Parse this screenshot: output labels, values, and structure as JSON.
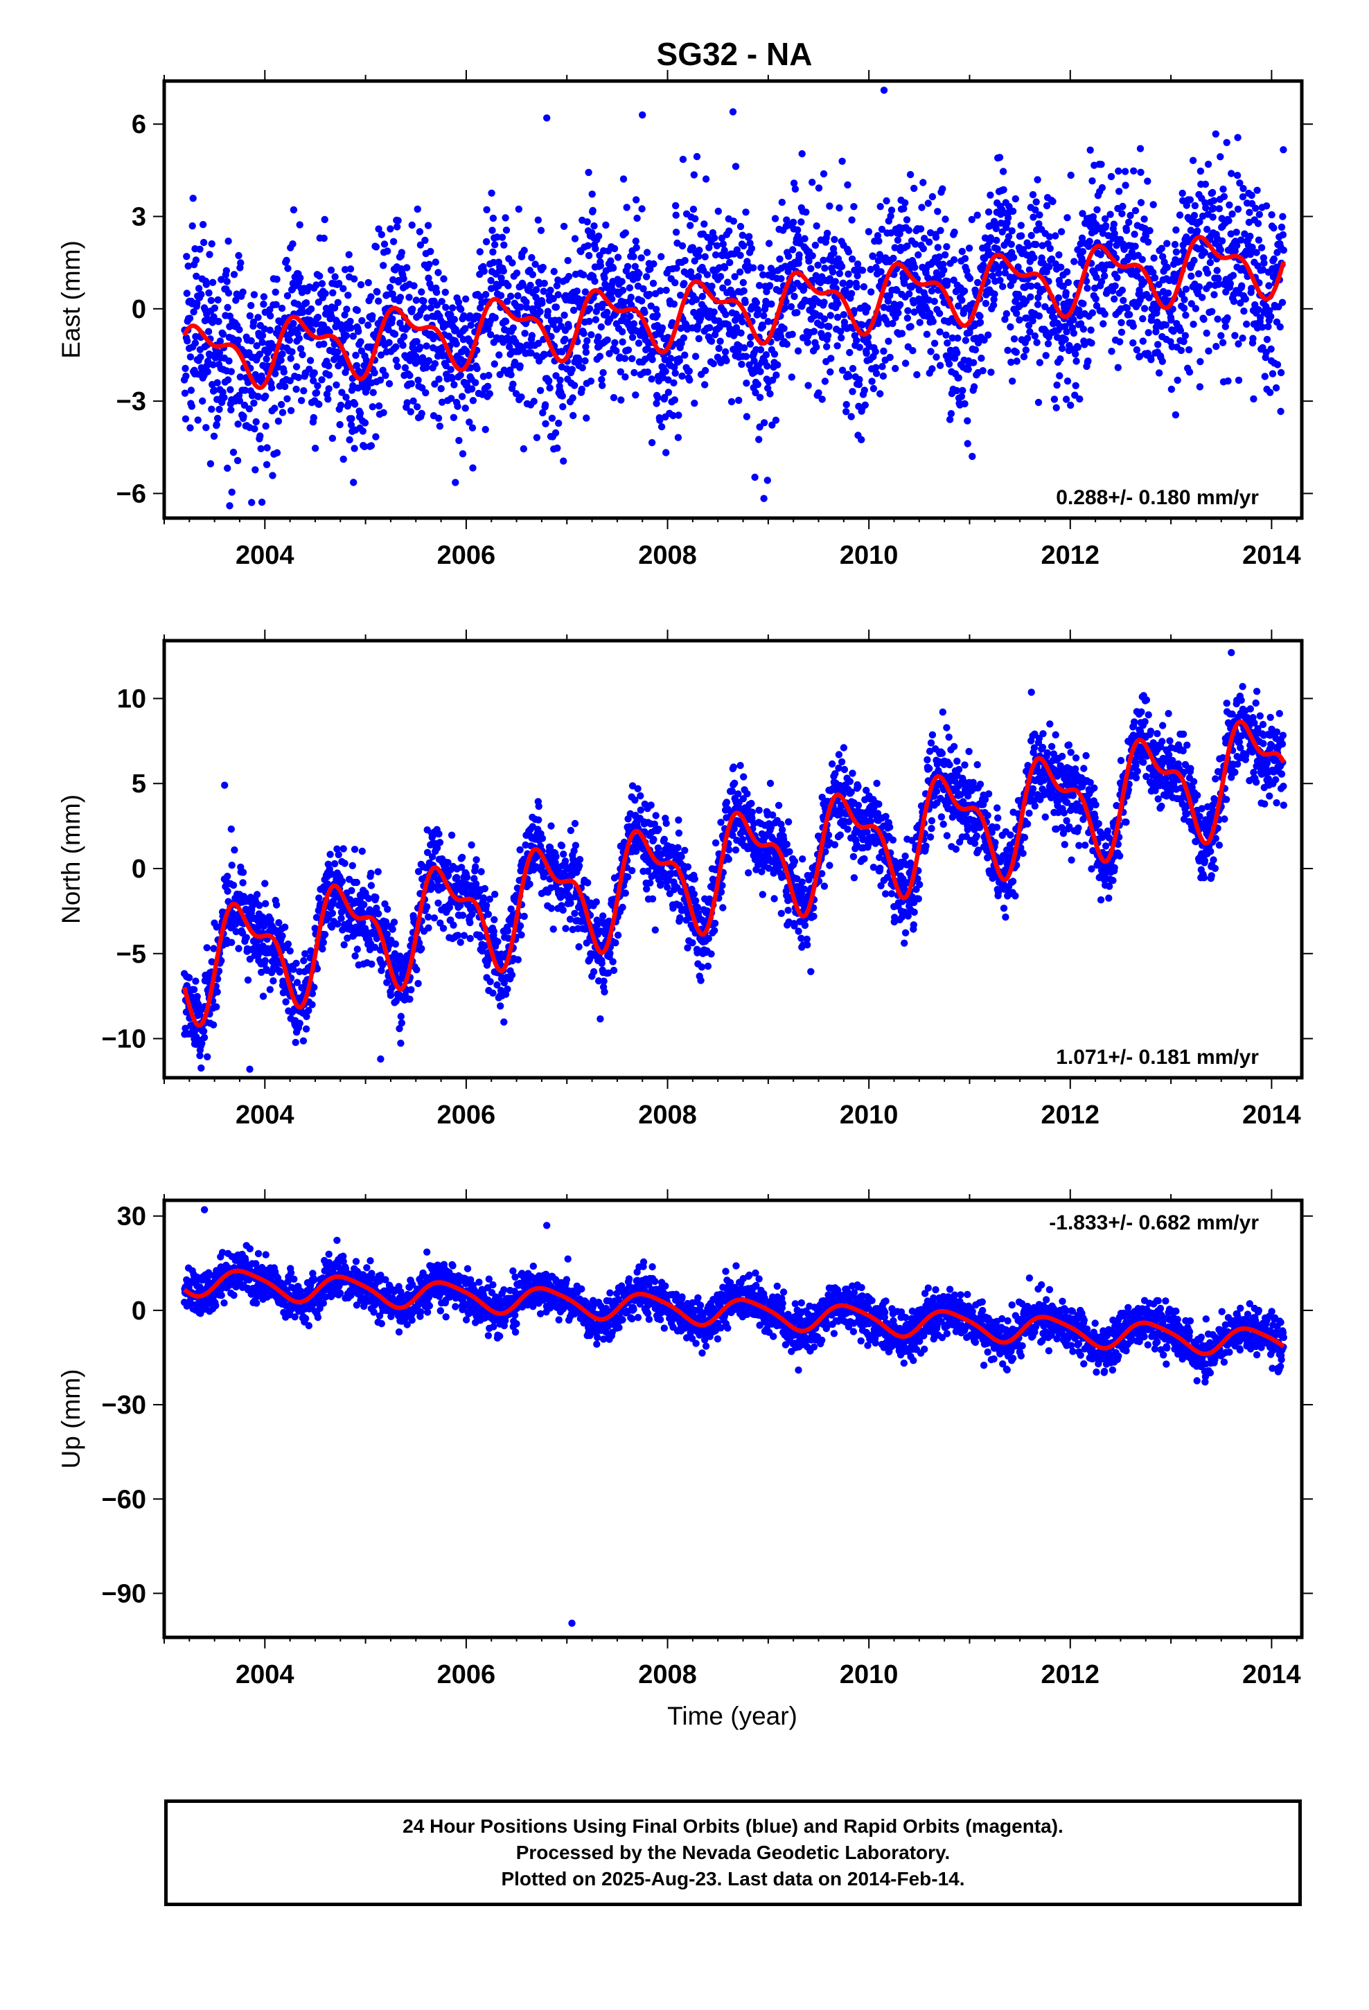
{
  "title": "SG32 - NA",
  "xlabel": "Time (year)",
  "colors": {
    "points": "#0000ff",
    "fit": "#ff0000",
    "frame": "#000000"
  },
  "footer": {
    "lines": [
      "24 Hour Positions Using Final Orbits (blue) and Rapid Orbits (magenta).",
      "Processed by the Nevada Geodetic Laboratory.",
      "Plotted on 2025-Aug-23. Last data on 2014-Feb-14."
    ]
  },
  "chart_data": [
    {
      "type": "scatter",
      "ylabel": "East (mm)",
      "rate_label": "0.288+/- 0.180 mm/yr",
      "rate_position": "bottom-right",
      "xlim": [
        2003.0,
        2014.3
      ],
      "ylim": [
        -6.8,
        7.4
      ],
      "xticks": [
        2004,
        2006,
        2008,
        2010,
        2012,
        2014
      ],
      "yticks": [
        -6,
        -3,
        0,
        3,
        6
      ],
      "ytick_labels": [
        "−6",
        "−3",
        "0",
        "3",
        "6"
      ],
      "data_range": [
        2003.2,
        2014.12
      ],
      "trend": {
        "t0": 2003.2,
        "y0": -1.55,
        "slope": 0.288
      },
      "seasonal": {
        "annual_amp": 0.85,
        "annual_phase_year": 2003.15,
        "semiannual_amp": 0.45
      },
      "scatter_sd": 1.5,
      "outliers": [
        [
          2010.15,
          7.1
        ],
        [
          2006.8,
          6.2
        ],
        [
          2007.75,
          6.3
        ],
        [
          2008.65,
          6.4
        ],
        [
          2003.65,
          -6.4
        ]
      ]
    },
    {
      "type": "scatter",
      "ylabel": "North (mm)",
      "rate_label": "1.071+/- 0.181 mm/yr",
      "rate_position": "bottom-right",
      "xlim": [
        2003.0,
        2014.3
      ],
      "ylim": [
        -12.3,
        13.4
      ],
      "xticks": [
        2004,
        2006,
        2008,
        2010,
        2012,
        2014
      ],
      "yticks": [
        -10,
        -5,
        0,
        5,
        10
      ],
      "ytick_labels": [
        "−10",
        "−5",
        "0",
        "5",
        "10"
      ],
      "data_range": [
        2003.2,
        2014.12
      ],
      "trend": {
        "t0": 2003.2,
        "y0": -5.6,
        "slope": 1.071
      },
      "seasonal": {
        "annual_amp": 2.7,
        "annual_phase_year": 2003.55,
        "semiannual_amp": 1.3
      },
      "scatter_sd": 1.3,
      "outliers": [
        [
          2003.6,
          4.9
        ],
        [
          2003.85,
          -11.8
        ],
        [
          2013.6,
          12.7
        ],
        [
          2005.15,
          -11.2
        ]
      ]
    },
    {
      "type": "scatter",
      "ylabel": "Up (mm)",
      "rate_label": "-1.833+/- 0.682 mm/yr",
      "rate_position": "top-right",
      "xlim": [
        2003.0,
        2014.3
      ],
      "ylim": [
        -104,
        35
      ],
      "xticks": [
        2004,
        2006,
        2008,
        2010,
        2012,
        2014
      ],
      "yticks": [
        -90,
        -60,
        -30,
        0,
        30
      ],
      "ytick_labels": [
        "−90",
        "−60",
        "−30",
        "0",
        "30"
      ],
      "data_range": [
        2003.2,
        2014.12
      ],
      "trend": {
        "t0": 2003.2,
        "y0": 9.5,
        "slope": -1.833
      },
      "seasonal": {
        "annual_amp": 4.2,
        "annual_phase_year": 2003.55,
        "semiannual_amp": 0.8
      },
      "scatter_sd": 3.6,
      "outliers": [
        [
          2007.05,
          -99.5
        ],
        [
          2003.4,
          32
        ],
        [
          2006.8,
          27
        ],
        [
          2009.3,
          -19
        ]
      ]
    }
  ]
}
